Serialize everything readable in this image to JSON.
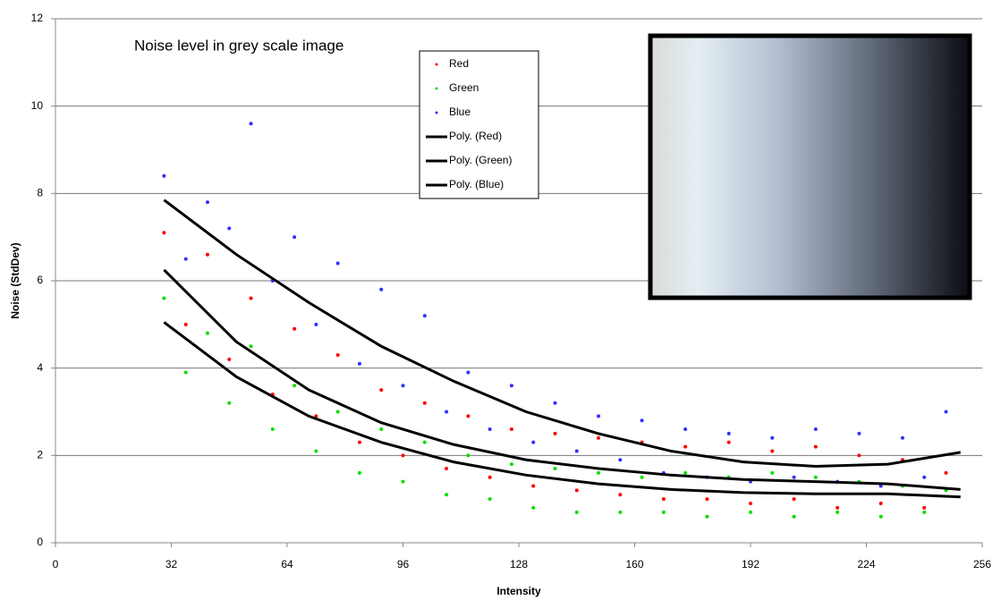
{
  "chart_data": {
    "type": "scatter",
    "title": "Noise level in grey scale image",
    "x_label": "Intensity",
    "y_label": "Noise (StdDev)",
    "xlim": [
      0,
      256
    ],
    "xticks": [
      0,
      32,
      64,
      96,
      128,
      160,
      192,
      224,
      256
    ],
    "ylim": [
      0,
      12
    ],
    "yticks": [
      0,
      2,
      4,
      6,
      8,
      10,
      12
    ],
    "grid": true,
    "legend": "top",
    "series": [
      {
        "name": "Red",
        "style": "points",
        "color": "#ff0000",
        "x": [
          30,
          36,
          42,
          48,
          54,
          60,
          66,
          72,
          78,
          84,
          90,
          96,
          102,
          108,
          114,
          120,
          126,
          132,
          138,
          144,
          150,
          156,
          162,
          168,
          174,
          180,
          186,
          192,
          198,
          204,
          210,
          216,
          222,
          228,
          234,
          240,
          246
        ],
        "values": [
          7.1,
          5.0,
          6.6,
          4.2,
          5.6,
          3.4,
          4.9,
          2.9,
          4.3,
          2.3,
          3.5,
          2.0,
          3.2,
          1.7,
          2.9,
          1.5,
          2.6,
          1.3,
          2.5,
          1.2,
          2.4,
          1.1,
          2.3,
          1.0,
          2.2,
          1.0,
          2.3,
          0.9,
          2.1,
          1.0,
          2.2,
          0.8,
          2.0,
          0.9,
          1.9,
          0.8,
          1.6
        ]
      },
      {
        "name": "Green",
        "style": "points",
        "color": "#00e000",
        "x": [
          30,
          36,
          42,
          48,
          54,
          60,
          66,
          72,
          78,
          84,
          90,
          96,
          102,
          108,
          114,
          120,
          126,
          132,
          138,
          144,
          150,
          156,
          162,
          168,
          174,
          180,
          186,
          192,
          198,
          204,
          210,
          216,
          222,
          228,
          234,
          240,
          246
        ],
        "values": [
          5.6,
          3.9,
          4.8,
          3.2,
          4.5,
          2.6,
          3.6,
          2.1,
          3.0,
          1.6,
          2.6,
          1.4,
          2.3,
          1.1,
          2.0,
          1.0,
          1.8,
          0.8,
          1.7,
          0.7,
          1.6,
          0.7,
          1.5,
          0.7,
          1.6,
          0.6,
          1.5,
          0.7,
          1.6,
          0.6,
          1.5,
          0.7,
          1.4,
          0.6,
          1.3,
          0.7,
          1.2
        ]
      },
      {
        "name": "Blue",
        "style": "points",
        "color": "#3030ff",
        "x": [
          30,
          36,
          42,
          48,
          54,
          60,
          66,
          72,
          78,
          84,
          90,
          96,
          102,
          108,
          114,
          120,
          126,
          132,
          138,
          144,
          150,
          156,
          162,
          168,
          174,
          180,
          186,
          192,
          198,
          204,
          210,
          216,
          222,
          228,
          234,
          240,
          246
        ],
        "values": [
          8.4,
          6.5,
          7.8,
          7.2,
          9.6,
          6.0,
          7.0,
          5.0,
          6.4,
          4.1,
          5.8,
          3.6,
          5.2,
          3.0,
          3.9,
          2.6,
          3.6,
          2.3,
          3.2,
          2.1,
          2.9,
          1.9,
          2.8,
          1.6,
          2.6,
          1.5,
          2.5,
          1.4,
          2.4,
          1.5,
          2.6,
          1.4,
          2.5,
          1.3,
          2.4,
          1.5,
          3.0
        ]
      },
      {
        "name": "Poly. (Red)",
        "style": "line",
        "color": "#000000",
        "x": [
          30,
          50,
          70,
          90,
          110,
          130,
          150,
          170,
          190,
          210,
          230,
          250
        ],
        "values": [
          6.25,
          4.6,
          3.5,
          2.75,
          2.25,
          1.9,
          1.7,
          1.55,
          1.45,
          1.4,
          1.35,
          1.22
        ]
      },
      {
        "name": "Poly. (Green)",
        "style": "line",
        "color": "#000000",
        "x": [
          30,
          50,
          70,
          90,
          110,
          130,
          150,
          170,
          190,
          210,
          230,
          250
        ],
        "values": [
          5.05,
          3.8,
          2.9,
          2.3,
          1.85,
          1.55,
          1.35,
          1.22,
          1.15,
          1.12,
          1.12,
          1.05
        ]
      },
      {
        "name": "Poly. (Blue)",
        "style": "line",
        "color": "#000000",
        "x": [
          30,
          50,
          70,
          90,
          110,
          130,
          150,
          170,
          190,
          210,
          230,
          250
        ],
        "values": [
          7.85,
          6.6,
          5.5,
          4.5,
          3.7,
          3.0,
          2.5,
          2.1,
          1.85,
          1.75,
          1.8,
          2.07
        ]
      }
    ]
  }
}
